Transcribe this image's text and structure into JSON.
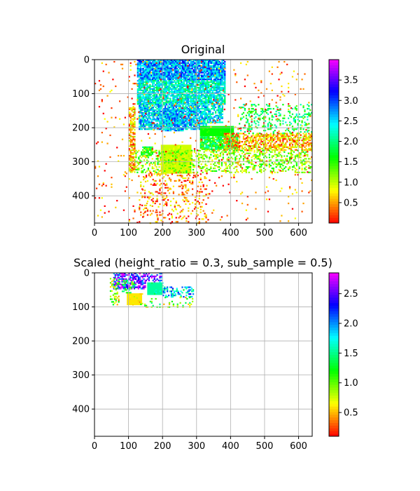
{
  "chart_data": [
    {
      "type": "heatmap",
      "title": "Original",
      "xlim": [
        0,
        640
      ],
      "ylim": [
        480,
        0
      ],
      "xticks": [
        0,
        100,
        200,
        300,
        400,
        500,
        600
      ],
      "yticks": [
        0,
        100,
        200,
        300,
        400
      ],
      "grid": true,
      "colormap": "hsv",
      "colorbar": {
        "min": 0.0,
        "max": 4.0,
        "ticks": [
          0.5,
          1.0,
          1.5,
          2.0,
          2.5,
          3.0,
          3.5
        ]
      },
      "regions": [
        {
          "x0": 125,
          "x1": 385,
          "y0": 0,
          "y1": 60,
          "value": 2.7,
          "kind": "noise",
          "density": 0.9
        },
        {
          "x0": 125,
          "x1": 385,
          "y0": 60,
          "y1": 130,
          "value": 2.3,
          "kind": "noise",
          "density": 0.85
        },
        {
          "x0": 130,
          "x1": 330,
          "y0": 130,
          "y1": 205,
          "value": 2.5,
          "kind": "noise",
          "density": 0.8
        },
        {
          "x0": 330,
          "x1": 375,
          "y0": 130,
          "y1": 185,
          "value": 2.4,
          "kind": "noise",
          "density": 0.7
        },
        {
          "x0": 190,
          "x1": 260,
          "y0": 150,
          "y1": 210,
          "value": 2.6,
          "kind": "noise",
          "density": 0.7
        },
        {
          "x0": 310,
          "x1": 410,
          "y0": 195,
          "y1": 225,
          "value": 1.6,
          "kind": "solid",
          "density": 1
        },
        {
          "x0": 310,
          "x1": 420,
          "y0": 225,
          "y1": 265,
          "value": 1.7,
          "kind": "noise",
          "density": 0.85
        },
        {
          "x0": 195,
          "x1": 285,
          "y0": 250,
          "y1": 335,
          "value": 0.95,
          "kind": "solid",
          "density": 1
        },
        {
          "x0": 100,
          "x1": 120,
          "y0": 140,
          "y1": 330,
          "value": 0.65,
          "kind": "noise",
          "density": 0.7
        },
        {
          "x0": 140,
          "x1": 170,
          "y0": 255,
          "y1": 280,
          "value": 1.6,
          "kind": "noise",
          "density": 0.8
        },
        {
          "x0": 380,
          "x1": 640,
          "y0": 215,
          "y1": 265,
          "value": 0.6,
          "kind": "noise",
          "density": 0.6
        },
        {
          "x0": 420,
          "x1": 640,
          "y0": 130,
          "y1": 215,
          "value": 1.8,
          "kind": "noise",
          "density": 0.25
        },
        {
          "x0": 120,
          "x1": 640,
          "y0": 265,
          "y1": 330,
          "value": 1.2,
          "kind": "noise",
          "density": 0.35
        },
        {
          "x0": 130,
          "x1": 330,
          "y0": 330,
          "y1": 480,
          "value": 0.4,
          "kind": "noise",
          "density": 0.18
        },
        {
          "x0": 0,
          "x1": 640,
          "y0": 0,
          "y1": 480,
          "value": 0.3,
          "kind": "noise",
          "density": 0.025
        }
      ]
    },
    {
      "type": "heatmap",
      "title": "Scaled (height_ratio = 0.3, sub_sample = 0.5)",
      "xlim": [
        0,
        640
      ],
      "ylim": [
        480,
        0
      ],
      "xticks": [
        0,
        100,
        200,
        300,
        400,
        500,
        600
      ],
      "yticks": [
        0,
        100,
        200,
        300,
        400
      ],
      "grid": true,
      "colormap": "hsv",
      "colorbar": {
        "min": 0.1,
        "max": 2.85,
        "ticks": [
          0.5,
          1.0,
          1.5,
          2.0,
          2.5
        ]
      },
      "regions": [
        {
          "x0": 55,
          "x1": 150,
          "y0": 0,
          "y1": 45,
          "value": 2.45,
          "kind": "noise",
          "density": 0.6
        },
        {
          "x0": 150,
          "x1": 200,
          "y0": 0,
          "y1": 25,
          "value": 2.3,
          "kind": "noise",
          "density": 0.4
        },
        {
          "x0": 155,
          "x1": 200,
          "y0": 28,
          "y1": 65,
          "value": 1.55,
          "kind": "solid",
          "density": 1
        },
        {
          "x0": 200,
          "x1": 290,
          "y0": 40,
          "y1": 70,
          "value": 1.8,
          "kind": "noise",
          "density": 0.4
        },
        {
          "x0": 95,
          "x1": 140,
          "y0": 60,
          "y1": 95,
          "value": 0.6,
          "kind": "solid",
          "density": 1
        },
        {
          "x0": 45,
          "x1": 70,
          "y0": 15,
          "y1": 95,
          "value": 0.8,
          "kind": "noise",
          "density": 0.3
        },
        {
          "x0": 130,
          "x1": 290,
          "y0": 70,
          "y1": 100,
          "value": 1.0,
          "kind": "noise",
          "density": 0.18
        },
        {
          "x0": 80,
          "x1": 120,
          "y0": 20,
          "y1": 60,
          "value": 1.4,
          "kind": "noise",
          "density": 0.35
        }
      ]
    }
  ]
}
